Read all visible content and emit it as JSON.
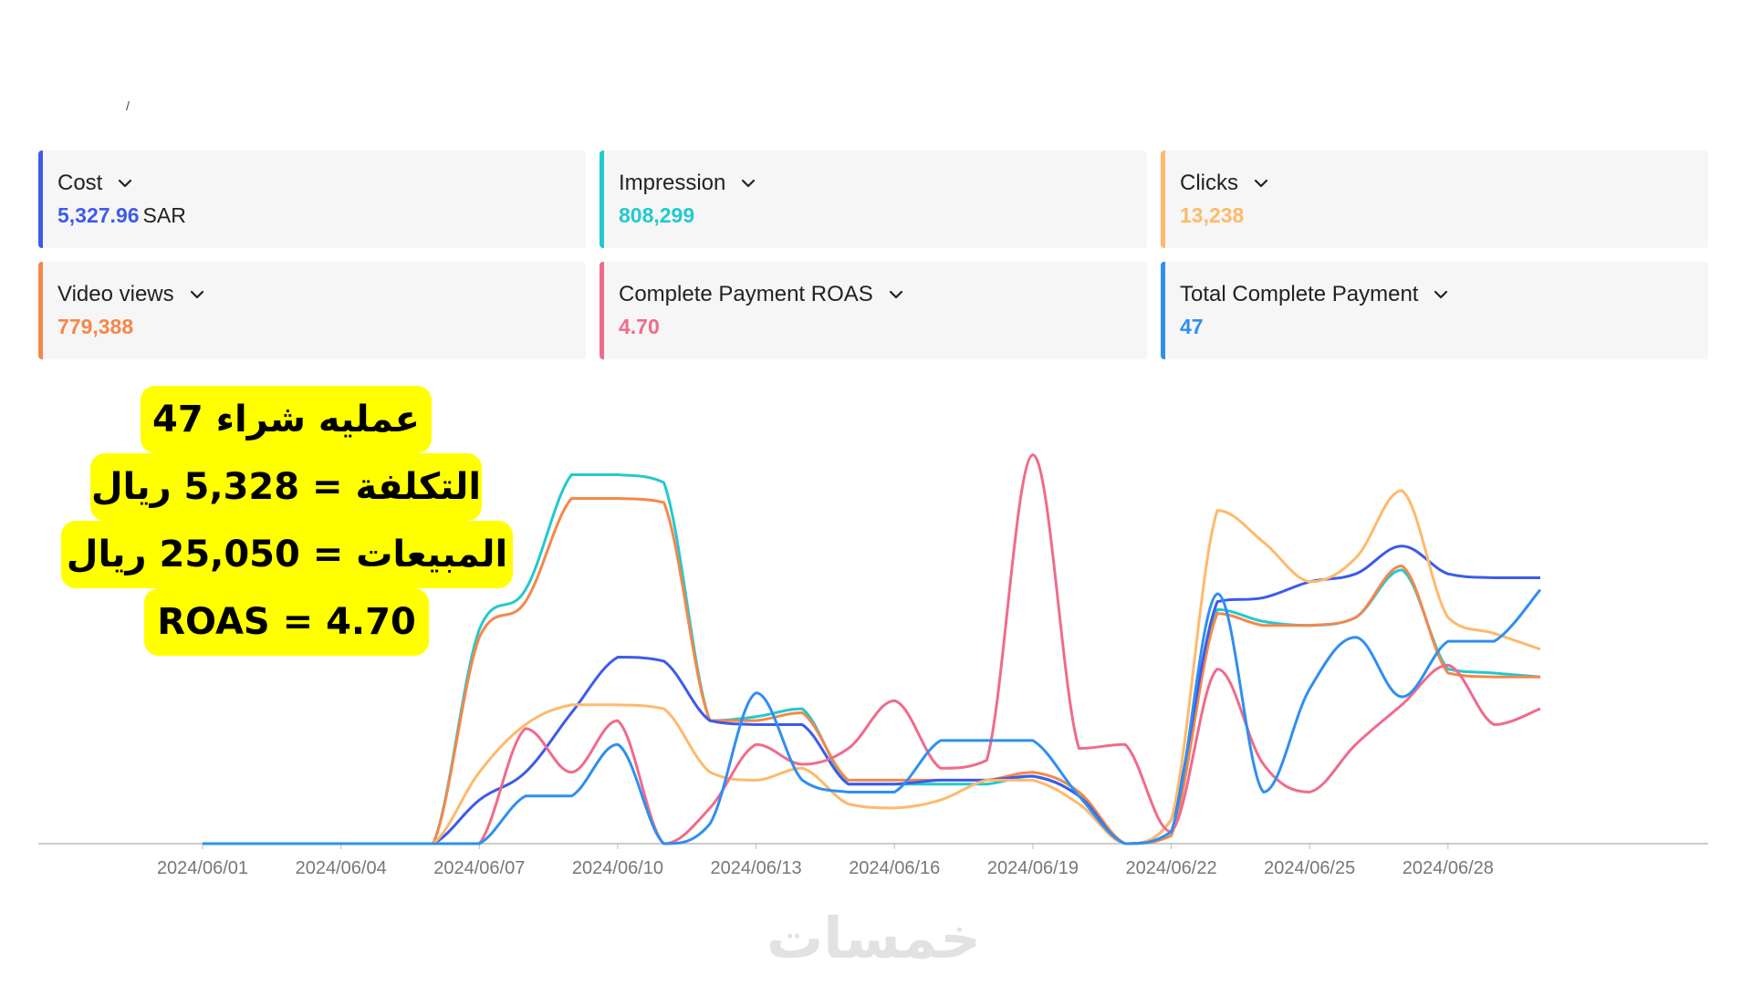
{
  "top_fragment": "/",
  "metrics": [
    {
      "label": "Cost",
      "value": "5,327.96",
      "unit": "SAR",
      "color": "#3d5be8"
    },
    {
      "label": "Impression",
      "value": "808,299",
      "unit": "",
      "color": "#22c9cf"
    },
    {
      "label": "Clicks",
      "value": "13,238",
      "unit": "",
      "color": "#ffb96b"
    },
    {
      "label": "Video views",
      "value": "779,388",
      "unit": "",
      "color": "#f5874a"
    },
    {
      "label": "Complete Payment ROAS",
      "value": "4.70",
      "unit": "",
      "color": "#f06b8a"
    },
    {
      "label": "Total Complete Payment",
      "value": "47",
      "unit": "",
      "color": "#2f8fef"
    }
  ],
  "annotation": {
    "line1": "47 عمليه شراء",
    "line2": "التكلفة = 5,328 ريال",
    "line3": "المبيعات = 25,050 ريال",
    "line4": "ROAS = 4.70",
    "color": "#ffff00"
  },
  "watermark": "خمسات",
  "chart_data": {
    "type": "line",
    "x": [
      "2024/06/01",
      "2024/06/02",
      "2024/06/03",
      "2024/06/04",
      "2024/06/05",
      "2024/06/06",
      "2024/06/07",
      "2024/06/08",
      "2024/06/09",
      "2024/06/10",
      "2024/06/11",
      "2024/06/12",
      "2024/06/13",
      "2024/06/14",
      "2024/06/15",
      "2024/06/16",
      "2024/06/17",
      "2024/06/18",
      "2024/06/19",
      "2024/06/20",
      "2024/06/21",
      "2024/06/22",
      "2024/06/23",
      "2024/06/24",
      "2024/06/25",
      "2024/06/26",
      "2024/06/27",
      "2024/06/28",
      "2024/06/29",
      "2024/06/30"
    ],
    "tick_labels": [
      "2024/06/01",
      "2024/06/04",
      "2024/06/07",
      "2024/06/10",
      "2024/06/13",
      "2024/06/16",
      "2024/06/19",
      "2024/06/22",
      "2024/06/25",
      "2024/06/28"
    ],
    "series": [
      {
        "name": "Impression",
        "color": "#22c9cf",
        "values": [
          0,
          0,
          0,
          0,
          0,
          0,
          0.54,
          0.64,
          0.93,
          0.93,
          0.91,
          0.31,
          0.32,
          0.34,
          0.15,
          0.15,
          0.15,
          0.15,
          0.17,
          0.12,
          0,
          0.03,
          0.59,
          0.56,
          0.55,
          0.57,
          0.69,
          0.44,
          0.43,
          0.42
        ]
      },
      {
        "name": "Video views",
        "color": "#f5874a",
        "values": [
          0,
          0,
          0,
          0,
          0,
          0,
          0.52,
          0.61,
          0.87,
          0.87,
          0.86,
          0.31,
          0.31,
          0.33,
          0.16,
          0.16,
          0.16,
          0.16,
          0.18,
          0.13,
          0,
          0.02,
          0.58,
          0.55,
          0.55,
          0.57,
          0.7,
          0.43,
          0.42,
          0.42
        ]
      },
      {
        "name": "Cost",
        "color": "#3d5be8",
        "values": [
          0,
          0,
          0,
          0,
          0,
          0,
          0.11,
          0.18,
          0.33,
          0.47,
          0.46,
          0.31,
          0.3,
          0.3,
          0.15,
          0.15,
          0.16,
          0.16,
          0.17,
          0.12,
          0,
          0.06,
          0.61,
          0.62,
          0.66,
          0.68,
          0.75,
          0.68,
          0.67,
          0.67
        ]
      },
      {
        "name": "Clicks",
        "color": "#ffb96b",
        "values": [
          0,
          0,
          0,
          0,
          0,
          0,
          0.18,
          0.3,
          0.35,
          0.35,
          0.34,
          0.18,
          0.16,
          0.19,
          0.1,
          0.09,
          0.11,
          0.16,
          0.16,
          0.1,
          0,
          0.06,
          0.84,
          0.76,
          0.66,
          0.72,
          0.89,
          0.57,
          0.53,
          0.49
        ]
      },
      {
        "name": "Complete Payment ROAS",
        "color": "#f06b8a",
        "values": [
          0,
          0,
          0,
          0,
          0,
          0,
          0,
          0.29,
          0.18,
          0.31,
          0,
          0.09,
          0.25,
          0.2,
          0.24,
          0.36,
          0.19,
          0.21,
          0.98,
          0.24,
          0.25,
          0.03,
          0.44,
          0.2,
          0.13,
          0.25,
          0.35,
          0.45,
          0.3,
          0.34
        ]
      },
      {
        "name": "Total Complete Payment",
        "color": "#2f8fef",
        "values": [
          0,
          0,
          0,
          0,
          0,
          0,
          0,
          0.12,
          0.12,
          0.25,
          0,
          0.05,
          0.38,
          0.16,
          0.13,
          0.13,
          0.26,
          0.26,
          0.26,
          0.12,
          0,
          0.03,
          0.63,
          0.13,
          0.39,
          0.52,
          0.37,
          0.51,
          0.51,
          0.64
        ]
      }
    ],
    "ylim": [
      0,
      1
    ],
    "grid": false,
    "legend": "none"
  }
}
